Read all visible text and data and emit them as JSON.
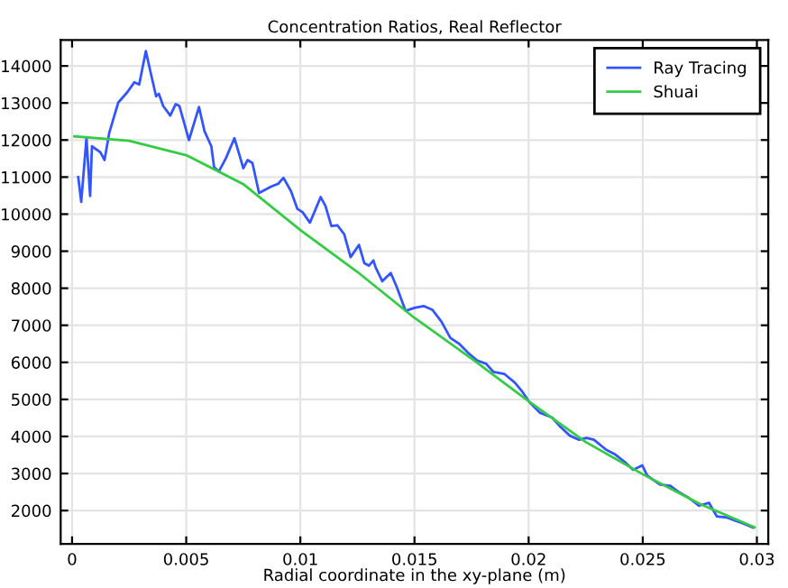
{
  "chart_data": {
    "type": "line",
    "title": "Concentration Ratios, Real Reflector",
    "xlabel": "Radial coordinate in the xy-plane (m)",
    "xlim": [
      -0.0005,
      0.0305
    ],
    "xticks": [
      0,
      0.005,
      0.01,
      0.015,
      0.02,
      0.025,
      0.03
    ],
    "ylim": [
      1100,
      14700
    ],
    "yticks": [
      2000,
      3000,
      4000,
      5000,
      6000,
      7000,
      8000,
      9000,
      10000,
      11000,
      12000,
      13000,
      14000
    ],
    "grid": true,
    "legend": "top right",
    "marker": "none",
    "line_style": "solid",
    "series": [
      {
        "name": "Ray Tracing",
        "color": "#3355ff",
        "x": [
          0.00027,
          0.0004,
          0.00063,
          0.00079,
          0.00087,
          0.00124,
          0.00142,
          0.00163,
          0.00202,
          0.00242,
          0.00273,
          0.00294,
          0.00323,
          0.00346,
          0.00368,
          0.0038,
          0.00399,
          0.0043,
          0.00454,
          0.0047,
          0.00512,
          0.00556,
          0.0058,
          0.0061,
          0.00622,
          0.00643,
          0.00674,
          0.00711,
          0.00732,
          0.0075,
          0.00769,
          0.0079,
          0.00819,
          0.00871,
          0.00903,
          0.00926,
          0.00959,
          0.00987,
          0.0101,
          0.01042,
          0.01089,
          0.0111,
          0.01136,
          0.01162,
          0.01192,
          0.0122,
          0.01257,
          0.0128,
          0.013,
          0.0132,
          0.0133,
          0.01359,
          0.01396,
          0.01422,
          0.01461,
          0.015,
          0.0154,
          0.01578,
          0.01618,
          0.01657,
          0.01696,
          0.01736,
          0.01775,
          0.01814,
          0.01846,
          0.01893,
          0.0194,
          0.01972,
          0.02003,
          0.0205,
          0.02103,
          0.02142,
          0.02181,
          0.02221,
          0.02254,
          0.02286,
          0.0234,
          0.0238,
          0.02419,
          0.02458,
          0.02498,
          0.0252,
          0.02576,
          0.0262,
          0.02655,
          0.027,
          0.02747,
          0.0279,
          0.02825,
          0.0287,
          0.02904,
          0.0294,
          0.02983
        ],
        "values": [
          11000,
          10330,
          12050,
          10490,
          11830,
          11670,
          11460,
          12200,
          13010,
          13290,
          13560,
          13500,
          14400,
          13770,
          13180,
          13250,
          12920,
          12660,
          12970,
          12920,
          12000,
          12890,
          12240,
          11830,
          11270,
          11150,
          11510,
          12050,
          11620,
          11240,
          11460,
          11380,
          10570,
          10740,
          10820,
          10980,
          10620,
          10140,
          10050,
          9770,
          10460,
          10220,
          9680,
          9700,
          9460,
          8840,
          9170,
          8680,
          8610,
          8750,
          8560,
          8190,
          8410,
          8040,
          7390,
          7470,
          7520,
          7420,
          7100,
          6660,
          6500,
          6250,
          6050,
          5960,
          5740,
          5690,
          5450,
          5210,
          4930,
          4640,
          4510,
          4240,
          4020,
          3910,
          3960,
          3910,
          3640,
          3510,
          3320,
          3100,
          3220,
          2940,
          2700,
          2670,
          2510,
          2350,
          2130,
          2210,
          1840,
          1810,
          1730,
          1650,
          1540
        ]
      },
      {
        "name": "Shuai",
        "color": "#33cc44",
        "x": [
          0.0001,
          0.0025,
          0.005,
          0.0075,
          0.01,
          0.0125,
          0.015,
          0.0175,
          0.02,
          0.0225,
          0.025,
          0.0275,
          0.0299
        ],
        "values": [
          12100,
          11980,
          11590,
          10810,
          9570,
          8440,
          7200,
          6100,
          4950,
          3850,
          2980,
          2180,
          1550
        ]
      }
    ]
  }
}
